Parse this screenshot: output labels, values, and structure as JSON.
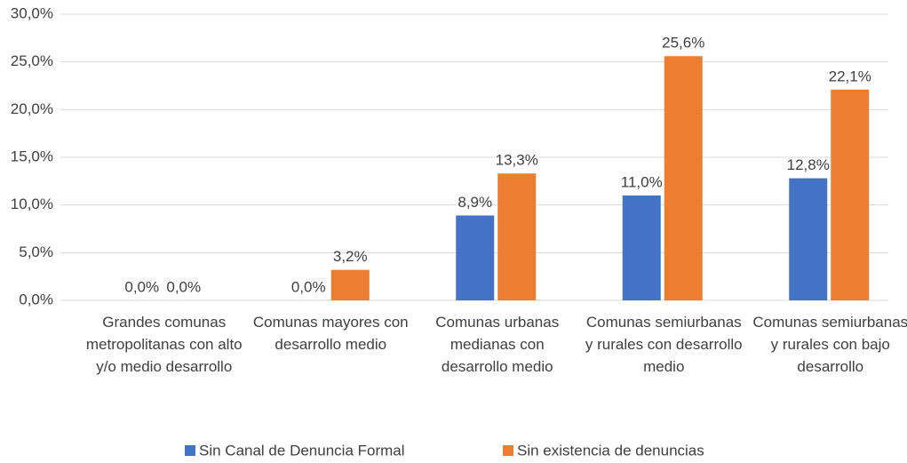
{
  "chart_data": {
    "type": "bar",
    "categories": [
      "Grandes comunas metropolitanas con alto y/o medio desarrollo",
      "Comunas mayores con desarrollo medio",
      "Comunas urbanas medianas con desarrollo medio",
      "Comunas semiurbanas y rurales con desarrollo medio",
      "Comunas semiurbanas y rurales con bajo desarrollo"
    ],
    "series": [
      {
        "name": "Sin Canal de Denuncia Formal",
        "color": "#4472c4",
        "values": [
          0,
          0,
          8.9,
          11,
          12.8
        ],
        "value_labels": [
          "0,0%",
          "0,0%",
          "8,9%",
          "11,0%",
          "12,8%"
        ]
      },
      {
        "name": "Sin existencia de denuncias",
        "color": "#ed7d31",
        "values": [
          0,
          3.2,
          13.3,
          25.6,
          22.1
        ],
        "value_labels": [
          "0,0%",
          "3,2%",
          "13,3%",
          "25,6%",
          "22,1%"
        ]
      }
    ],
    "ylim": [
      0,
      30
    ],
    "yticks": [
      {
        "value": 0,
        "label": "0,0%"
      },
      {
        "value": 5,
        "label": "5,0%"
      },
      {
        "value": 10,
        "label": "10,0%"
      },
      {
        "value": 15,
        "label": "15,0%"
      },
      {
        "value": 20,
        "label": "20,0%"
      },
      {
        "value": 25,
        "label": "25,0%"
      },
      {
        "value": 30,
        "label": "30,0%"
      }
    ],
    "grid": true,
    "legend": "bottom"
  }
}
